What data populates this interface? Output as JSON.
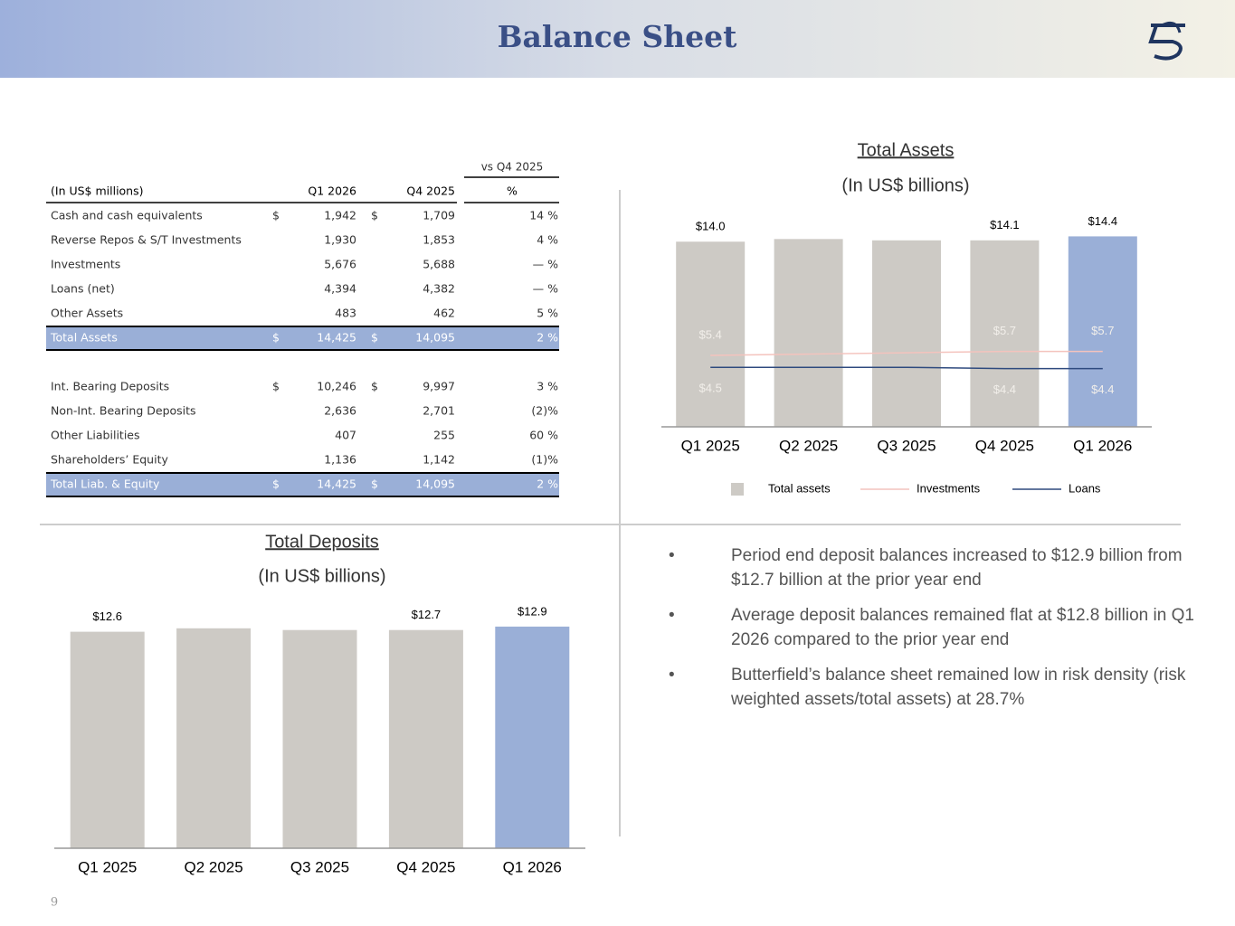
{
  "header": {
    "title": "Balance Sheet"
  },
  "page_number": "9",
  "table": {
    "total_color": "#9aafd7",
    "header": {
      "group": "vs Q4 2025",
      "columns": [
        "(In US$ millions)",
        "Q1 2026",
        "Q4 2025",
        "%"
      ]
    },
    "sections": [
      [
        {
          "cells": [
            "Cash and cash equivalents",
            "$",
            "1,942",
            "$",
            "1,709",
            "14 %"
          ]
        },
        {
          "cells": [
            "Reverse Repos & S/T Investments",
            null,
            "1,930",
            null,
            "1,853",
            "4 %"
          ]
        },
        {
          "cells": [
            "Investments",
            null,
            "5,676",
            null,
            "5,688",
            "— %"
          ]
        },
        {
          "cells": [
            "Loans (net)",
            null,
            "4,394",
            null,
            "4,382",
            "— %"
          ]
        },
        {
          "cells": [
            "Other Assets",
            null,
            "483",
            null,
            "462",
            "5 %"
          ]
        },
        {
          "cells": [
            "Total Assets",
            "$",
            "14,425",
            "$",
            "14,095",
            "2 %"
          ],
          "total": true
        }
      ],
      [
        {
          "cells": [
            "Int. Bearing Deposits",
            "$",
            "10,246",
            "$",
            "9,997",
            "3 %"
          ]
        },
        {
          "cells": [
            "Non-Int. Bearing Deposits",
            null,
            "2,636",
            null,
            "2,701",
            "(2)%"
          ]
        },
        {
          "cells": [
            "Other Liabilities",
            null,
            "407",
            null,
            "255",
            "60 %"
          ]
        },
        {
          "cells": [
            "Shareholders’ Equity",
            null,
            "1,136",
            null,
            "1,142",
            "(1)%"
          ]
        },
        {
          "cells": [
            "Total Liab. & Equity",
            "$",
            "14,425",
            "$",
            "14,095",
            "2 %"
          ],
          "total": true
        }
      ]
    ]
  },
  "chart_data": [
    {
      "type": "combo",
      "title": "Total Assets",
      "subtitle": "(In US$ billions)",
      "categories": [
        "Q1 2025",
        "Q2 2025",
        "Q3 2025",
        "Q4 2025",
        "Q1 2026"
      ],
      "ylim": [
        0,
        16
      ],
      "legend": "bottom",
      "series": [
        {
          "name": "Total assets",
          "type": "bar",
          "colors": [
            "#cdcac5",
            "#cdcac5",
            "#cdcac5",
            "#cdcac5",
            "#9aafd7"
          ],
          "values": [
            14.0,
            14.2,
            14.1,
            14.1,
            14.4
          ],
          "value_labels": [
            "$14.0",
            null,
            null,
            "$14.1",
            "$14.4"
          ],
          "label_color": "#000000"
        },
        {
          "name": "Investments",
          "type": "line",
          "color": "#f4c3bd",
          "label_position": "above",
          "values": [
            5.4,
            5.5,
            5.6,
            5.7,
            5.7
          ],
          "value_labels": [
            "$5.4",
            null,
            null,
            "$5.7",
            "$5.7"
          ],
          "label_color": "#f2efea"
        },
        {
          "name": "Loans",
          "type": "line",
          "color": "#2e4a7e",
          "label_position": "below",
          "values": [
            4.5,
            4.5,
            4.5,
            4.4,
            4.4
          ],
          "value_labels": [
            "$4.5",
            null,
            null,
            "$4.4",
            "$4.4"
          ],
          "label_color": "#f2efea"
        }
      ]
    },
    {
      "type": "bar",
      "title": "Total Deposits",
      "subtitle": "(In US$ billions)",
      "categories": [
        "Q1 2025",
        "Q2 2025",
        "Q3 2025",
        "Q4 2025",
        "Q1 2026"
      ],
      "ylim": [
        0,
        14
      ],
      "series": [
        {
          "name": null,
          "type": "bar",
          "colors": [
            "#cdcac5",
            "#cdcac5",
            "#cdcac5",
            "#cdcac5",
            "#9aafd7"
          ],
          "values": [
            12.6,
            12.8,
            12.7,
            12.7,
            12.9
          ],
          "value_labels": [
            "$12.6",
            null,
            null,
            "$12.7",
            "$12.9"
          ],
          "label_color": "#000000"
        }
      ]
    }
  ],
  "bullets": [
    "Period end deposit balances increased to $12.9 billion from $12.7 billion at the prior year end",
    "Average deposit balances remained flat at $12.8 billion in Q1 2026 compared to the prior year end",
    "Butterfield’s balance sheet remained low in risk density (risk weighted assets/total assets) at 28.7%"
  ]
}
